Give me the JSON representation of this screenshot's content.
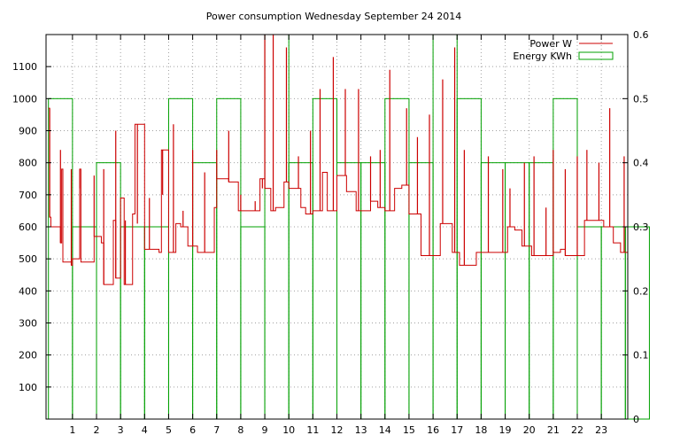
{
  "chart_data": {
    "type": "line",
    "title": "Power consumption Wednesday September 24 2014",
    "xlabel": "",
    "ylabel": "",
    "y2label": "",
    "xlim": [
      -0.1,
      24.1
    ],
    "ylim": [
      0,
      1200
    ],
    "y2lim": [
      0,
      0.6
    ],
    "x_ticks": [
      1,
      2,
      3,
      4,
      5,
      6,
      7,
      8,
      9,
      10,
      11,
      12,
      13,
      14,
      15,
      16,
      17,
      18,
      19,
      20,
      21,
      22,
      23
    ],
    "y_ticks": [
      100,
      200,
      300,
      400,
      500,
      600,
      700,
      800,
      900,
      1000,
      1100
    ],
    "y2_ticks": [
      0,
      0.1,
      0.2,
      0.3,
      0.4,
      0.5,
      0.6
    ],
    "grid": true,
    "legend_position": "top-right",
    "series": [
      {
        "name": "Power W",
        "axis": "y",
        "color": "#cc0000",
        "kind": "stepped-line",
        "x": [
          0,
          0.05,
          0.1,
          0.5,
          0.55,
          0.6,
          0.95,
          1.0,
          1.3,
          1.35,
          1.9,
          2.2,
          2.3,
          2.7,
          2.8,
          3.0,
          3.15,
          3.5,
          3.6,
          4.0,
          4.2,
          4.6,
          4.7,
          5.0,
          5.3,
          5.5,
          5.8,
          6.2,
          6.5,
          6.9,
          7.0,
          7.5,
          7.9,
          8.5,
          8.8,
          9.0,
          9.25,
          9.45,
          9.8,
          10.0,
          10.5,
          10.7,
          11.0,
          11.4,
          11.6,
          12.0,
          12.4,
          12.8,
          13.4,
          13.7,
          14.0,
          14.4,
          14.7,
          15.0,
          15.5,
          15.8,
          16.1,
          16.3,
          16.8,
          17.1,
          17.8,
          18.4,
          18.8,
          19.1,
          19.4,
          19.7,
          20.1,
          20.7,
          21.0,
          21.3,
          21.5,
          21.9,
          22.3,
          22.7,
          23.1,
          23.5,
          23.8,
          24.0
        ],
        "y": [
          970,
          630,
          600,
          550,
          780,
          490,
          480,
          500,
          780,
          490,
          570,
          550,
          420,
          620,
          440,
          690,
          420,
          640,
          920,
          530,
          530,
          520,
          840,
          520,
          610,
          600,
          540,
          520,
          520,
          660,
          750,
          740,
          650,
          650,
          750,
          720,
          650,
          660,
          740,
          720,
          660,
          640,
          650,
          770,
          650,
          760,
          710,
          650,
          680,
          660,
          650,
          720,
          730,
          640,
          510,
          510,
          510,
          610,
          520,
          480,
          520,
          520,
          520,
          600,
          590,
          540,
          510,
          510,
          520,
          530,
          510,
          510,
          620,
          620,
          600,
          550,
          520,
          520
        ],
        "spikes": [
          [
            0.05,
            970
          ],
          [
            0.5,
            840
          ],
          [
            0.95,
            780
          ],
          [
            1.3,
            720
          ],
          [
            1.9,
            760
          ],
          [
            2.3,
            780
          ],
          [
            2.8,
            900
          ],
          [
            3.2,
            620
          ],
          [
            3.7,
            610
          ],
          [
            4.2,
            690
          ],
          [
            4.75,
            700
          ],
          [
            5.2,
            920
          ],
          [
            5.6,
            650
          ],
          [
            6.0,
            840
          ],
          [
            6.5,
            770
          ],
          [
            7.0,
            840
          ],
          [
            7.5,
            900
          ],
          [
            8.0,
            700
          ],
          [
            8.6,
            680
          ],
          [
            8.9,
            720
          ],
          [
            9.0,
            1200
          ],
          [
            9.35,
            1200
          ],
          [
            9.9,
            1160
          ],
          [
            10.4,
            820
          ],
          [
            10.9,
            900
          ],
          [
            11.3,
            1030
          ],
          [
            11.85,
            1130
          ],
          [
            12.35,
            1030
          ],
          [
            12.9,
            1030
          ],
          [
            13.4,
            820
          ],
          [
            13.8,
            840
          ],
          [
            14.2,
            1090
          ],
          [
            14.9,
            970
          ],
          [
            15.35,
            880
          ],
          [
            15.85,
            950
          ],
          [
            16.4,
            1060
          ],
          [
            16.9,
            1160
          ],
          [
            17.3,
            840
          ],
          [
            18.3,
            820
          ],
          [
            18.9,
            780
          ],
          [
            19.2,
            720
          ],
          [
            19.8,
            800
          ],
          [
            20.2,
            820
          ],
          [
            20.7,
            660
          ],
          [
            21.0,
            840
          ],
          [
            21.5,
            780
          ],
          [
            22.0,
            820
          ],
          [
            22.4,
            840
          ],
          [
            22.9,
            800
          ],
          [
            23.35,
            970
          ],
          [
            23.95,
            820
          ]
        ]
      },
      {
        "name": "Energy KWh",
        "axis": "y2",
        "color": "#00a000",
        "kind": "boxes",
        "values": [
          0.5,
          0.3,
          0.4,
          0.3,
          0.3,
          0.5,
          0.4,
          0.5,
          0.3,
          0.6,
          0.4,
          0.5,
          0.4,
          0.4,
          0.5,
          0.4,
          0.6,
          0.5,
          0.4,
          0.4,
          0.4,
          0.5,
          0.3,
          0.3,
          0.3
        ]
      }
    ]
  }
}
